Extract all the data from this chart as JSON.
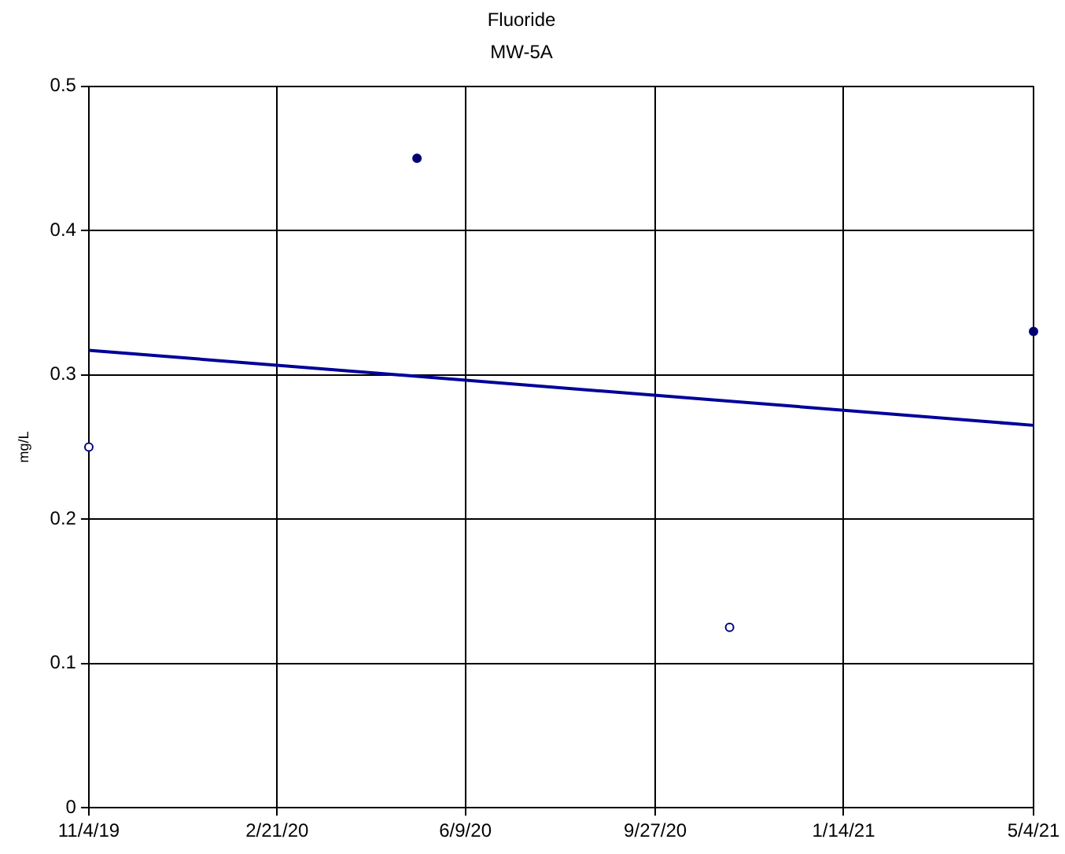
{
  "chart_data": {
    "type": "scatter",
    "title": "Fluoride",
    "subtitle": "MW-5A",
    "ylabel": "mg/L",
    "series": [
      {
        "color": "#ffffff",
        "x": [
          "2019-11-04",
          "2020-11-09"
        ],
        "values": [
          0.25,
          0.125
        ]
      },
      {
        "color": "#000066",
        "x": [
          "2020-05-12",
          "2021-05-04"
        ],
        "values": [
          0.45,
          0.33
        ]
      },
      {
        "type": "line",
        "color": "#000099",
        "x": [
          "2019-11-04",
          "2021-05-04"
        ],
        "values": [
          0.317,
          0.265
        ],
        "marker": "none"
      }
    ],
    "xlim": [
      "2019-11-04",
      "2021-05-04"
    ],
    "xticks": [
      {
        "value": "2019-11-04",
        "label": "11/4/19"
      },
      {
        "value": "2020-02-21",
        "label": "2/21/20"
      },
      {
        "value": "2020-06-09",
        "label": "6/9/20"
      },
      {
        "value": "2020-09-27",
        "label": "9/27/20"
      },
      {
        "value": "2021-01-14",
        "label": "1/14/21"
      },
      {
        "value": "2021-05-04",
        "label": "5/4/21"
      }
    ],
    "ylim": [
      0,
      0.5
    ],
    "yticks": [
      0,
      0.1,
      0.2,
      0.3,
      0.4,
      0.5
    ],
    "grid": true,
    "legend": false,
    "marker": "circle"
  }
}
